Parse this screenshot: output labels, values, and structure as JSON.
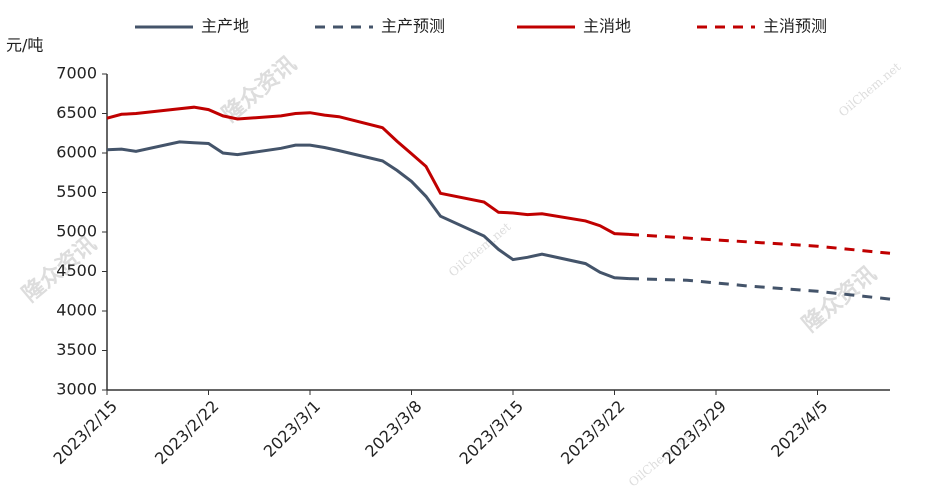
{
  "chart_data": {
    "type": "line",
    "y_label": "元/吨",
    "watermarks": [
      "隆众资讯",
      "OilChem.net"
    ],
    "xlim": [
      "2023/2/15",
      "2023/4/10"
    ],
    "xticks": [
      "2023/2/15",
      "2023/2/22",
      "2023/3/1",
      "2023/3/8",
      "2023/3/15",
      "2023/3/22",
      "2023/3/29",
      "2023/4/5"
    ],
    "ylim": [
      3000,
      7000
    ],
    "yticks": [
      3000,
      3500,
      4000,
      4500,
      5000,
      5500,
      6000,
      6500,
      7000
    ],
    "series": [
      {
        "name": "主产地",
        "color": "#44546a",
        "dash": false,
        "x": [
          "2023/2/15",
          "2023/2/16",
          "2023/2/17",
          "2023/2/20",
          "2023/2/21",
          "2023/2/22",
          "2023/2/23",
          "2023/2/24",
          "2023/2/27",
          "2023/2/28",
          "2023/3/1",
          "2023/3/2",
          "2023/3/3",
          "2023/3/6",
          "2023/3/7",
          "2023/3/8",
          "2023/3/9",
          "2023/3/10",
          "2023/3/13",
          "2023/3/14",
          "2023/3/15",
          "2023/3/16",
          "2023/3/17",
          "2023/3/20",
          "2023/3/21",
          "2023/3/22",
          "2023/3/23"
        ],
        "values": [
          6040,
          6050,
          6020,
          6140,
          6130,
          6120,
          6000,
          5980,
          6060,
          6100,
          6100,
          6070,
          6030,
          5900,
          5780,
          5640,
          5450,
          5200,
          4950,
          4780,
          4650,
          4680,
          4720,
          4600,
          4490,
          4420,
          4410
        ]
      },
      {
        "name": "主产预测",
        "color": "#44546a",
        "dash": true,
        "x": [
          "2023/3/23",
          "2023/3/27",
          "2023/3/31",
          "2023/4/5",
          "2023/4/10"
        ],
        "values": [
          4410,
          4390,
          4320,
          4250,
          4150
        ]
      },
      {
        "name": "主消地",
        "color": "#c00000",
        "dash": false,
        "x": [
          "2023/2/15",
          "2023/2/16",
          "2023/2/17",
          "2023/2/20",
          "2023/2/21",
          "2023/2/22",
          "2023/2/23",
          "2023/2/24",
          "2023/2/27",
          "2023/2/28",
          "2023/3/1",
          "2023/3/2",
          "2023/3/3",
          "2023/3/6",
          "2023/3/7",
          "2023/3/8",
          "2023/3/9",
          "2023/3/10",
          "2023/3/13",
          "2023/3/14",
          "2023/3/15",
          "2023/3/16",
          "2023/3/17",
          "2023/3/20",
          "2023/3/21",
          "2023/3/22",
          "2023/3/23"
        ],
        "values": [
          6440,
          6490,
          6500,
          6560,
          6580,
          6550,
          6470,
          6430,
          6470,
          6500,
          6510,
          6480,
          6460,
          6320,
          6150,
          5990,
          5830,
          5490,
          5380,
          5250,
          5240,
          5220,
          5230,
          5140,
          5080,
          4980,
          4970
        ]
      },
      {
        "name": "主消预测",
        "color": "#c00000",
        "dash": true,
        "x": [
          "2023/3/23",
          "2023/3/29",
          "2023/4/5",
          "2023/4/10"
        ],
        "values": [
          4970,
          4900,
          4820,
          4730
        ]
      }
    ]
  }
}
